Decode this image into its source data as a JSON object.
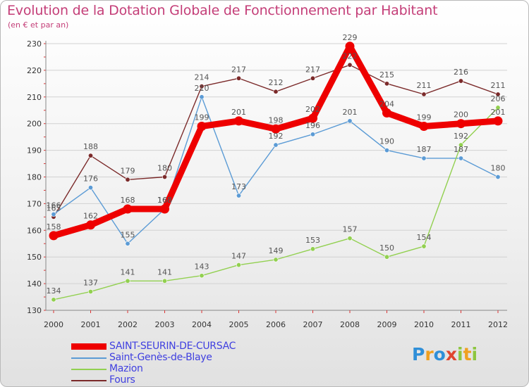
{
  "title": "Evolution de la Dotation Globale de Fonctionnement par Habitant",
  "subtitle": "(en € et par an)",
  "logo": {
    "text": "Proxiti",
    "letters": [
      "P",
      "r",
      "o",
      "x",
      "i",
      "t",
      "i"
    ],
    "colors": [
      "#2f8fd8",
      "#f0a020",
      "#2f8fd8",
      "#e0452f",
      "#8dc63f",
      "#f0a020",
      "#8dc63f"
    ]
  },
  "chart_data": {
    "type": "line",
    "title": "Evolution de la Dotation Globale de Fonctionnement par Habitant",
    "subtitle": "(en € et par an)",
    "xlabel": "",
    "ylabel": "",
    "ylim": [
      130,
      230
    ],
    "yticks": [
      130,
      140,
      150,
      160,
      170,
      180,
      190,
      200,
      210,
      220,
      230
    ],
    "grid": "horizontal",
    "legend_position": "bottom-left",
    "categories": [
      "2000",
      "2001",
      "2002",
      "2003",
      "2004",
      "2005",
      "2006",
      "2007",
      "2008",
      "2009",
      "2010",
      "2011",
      "2012"
    ],
    "series": [
      {
        "name": "SAINT-SEURIN-DE-CURSAC",
        "color": "#ee0000",
        "legend_text_color": "#4040e0",
        "width": "thick",
        "values": [
          158,
          162,
          168,
          168,
          199,
          201,
          198,
          202,
          229,
          204,
          199,
          200,
          201
        ]
      },
      {
        "name": "Saint-Genès-de-Blaye",
        "color": "#5b9bd5",
        "legend_text_color": "#4040e0",
        "width": "thin",
        "values": [
          166,
          176,
          155,
          168,
          210,
          173,
          192,
          196,
          201,
          190,
          187,
          187,
          180
        ]
      },
      {
        "name": "Mazion",
        "color": "#92d050",
        "legend_text_color": "#4040e0",
        "width": "thin",
        "values": [
          134,
          137,
          141,
          141,
          143,
          147,
          149,
          153,
          157,
          150,
          154,
          192,
          206
        ]
      },
      {
        "name": "Fours",
        "color": "#7b2a2a",
        "legend_text_color": "#4040e0",
        "width": "thin",
        "values": [
          165,
          188,
          179,
          180,
          214,
          217,
          212,
          217,
          222,
          215,
          211,
          216,
          211
        ]
      }
    ]
  }
}
